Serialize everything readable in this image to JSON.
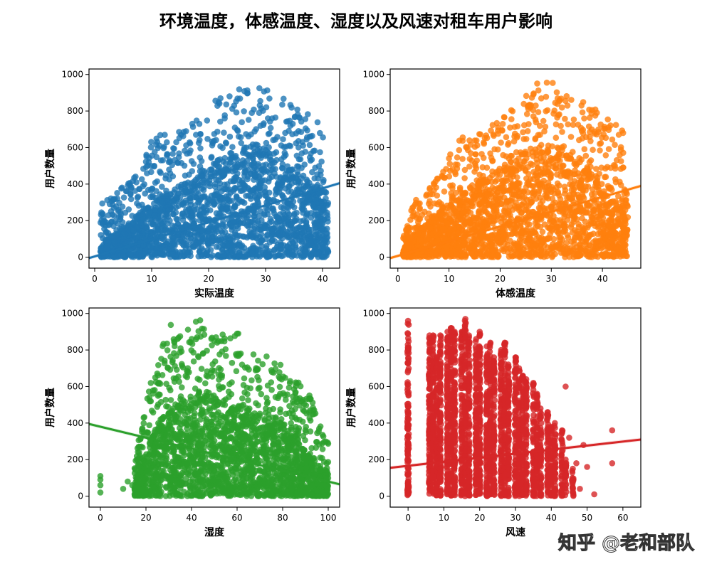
{
  "figure": {
    "title": "环境温度，体感温度、湿度以及风速对租车用户影响",
    "watermark": "知乎 @老和部队"
  },
  "chart_data": [
    {
      "type": "scatter",
      "xlabel": "实际温度",
      "ylabel": "用户数量",
      "xlim": [
        -1,
        43
      ],
      "ylim": [
        -60,
        1030
      ],
      "xticks": [
        0,
        10,
        20,
        30,
        40
      ],
      "yticks": [
        0,
        200,
        400,
        600,
        800,
        1000
      ],
      "color": "#1f77b4",
      "regression": {
        "x": [
          -1,
          43
        ],
        "y": [
          -5,
          405
        ]
      },
      "envelope": {
        "x": [
          1,
          4,
          6,
          8,
          10,
          12,
          14,
          16,
          18,
          20,
          22,
          24,
          26,
          28,
          30,
          32,
          34,
          36,
          38,
          40,
          41
        ],
        "y_upper": [
          320,
          360,
          430,
          500,
          640,
          680,
          700,
          720,
          760,
          840,
          870,
          900,
          940,
          960,
          920,
          870,
          870,
          800,
          780,
          720,
          300
        ],
        "y_core": [
          80,
          140,
          190,
          240,
          300,
          340,
          380,
          420,
          460,
          500,
          540,
          560,
          600,
          620,
          600,
          560,
          500,
          460,
          420,
          380,
          300
        ]
      }
    },
    {
      "type": "scatter",
      "xlabel": "体感温度",
      "ylabel": "用户数量",
      "xlim": [
        -1.5,
        47.5
      ],
      "ylim": [
        -60,
        1030
      ],
      "xticks": [
        0,
        10,
        20,
        30,
        40
      ],
      "yticks": [
        0,
        200,
        400,
        600,
        800,
        1000
      ],
      "color": "#ff7f0e",
      "regression": {
        "x": [
          -1.5,
          47.5
        ],
        "y": [
          -5,
          390
        ]
      },
      "envelope": {
        "x": [
          1,
          3,
          5,
          8,
          10,
          12,
          14,
          16,
          18,
          20,
          22,
          24,
          26,
          28,
          30,
          32,
          34,
          36,
          38,
          40,
          42,
          44,
          45
        ],
        "y_upper": [
          100,
          300,
          360,
          460,
          560,
          640,
          700,
          700,
          720,
          760,
          800,
          860,
          940,
          960,
          980,
          900,
          880,
          860,
          820,
          800,
          740,
          700,
          320
        ],
        "y_core": [
          40,
          120,
          180,
          250,
          300,
          340,
          380,
          420,
          460,
          500,
          540,
          560,
          600,
          620,
          620,
          600,
          560,
          500,
          460,
          420,
          380,
          320,
          280
        ]
      }
    },
    {
      "type": "scatter",
      "xlabel": "湿度",
      "ylabel": "用户数量",
      "xlim": [
        -5,
        105
      ],
      "ylim": [
        -60,
        1030
      ],
      "xticks": [
        0,
        20,
        40,
        60,
        80,
        100
      ],
      "yticks": [
        0,
        200,
        400,
        600,
        800,
        1000
      ],
      "color": "#2ca02c",
      "regression": {
        "x": [
          -5,
          105
        ],
        "y": [
          395,
          65
        ]
      },
      "envelope": {
        "x": [
          15,
          18,
          22,
          26,
          30,
          35,
          40,
          45,
          50,
          55,
          60,
          65,
          70,
          75,
          80,
          85,
          88,
          90,
          93,
          96,
          100
        ],
        "y_upper": [
          180,
          400,
          620,
          760,
          960,
          880,
          940,
          980,
          880,
          900,
          900,
          820,
          800,
          740,
          720,
          640,
          620,
          600,
          520,
          400,
          300
        ],
        "y_core": [
          60,
          180,
          300,
          420,
          480,
          520,
          560,
          580,
          560,
          520,
          500,
          480,
          450,
          420,
          380,
          340,
          300,
          260,
          200,
          160,
          120
        ]
      },
      "sparse_points": [
        [
          0,
          20
        ],
        [
          0,
          60
        ],
        [
          0,
          90
        ],
        [
          0,
          110
        ],
        [
          10,
          40
        ],
        [
          12,
          80
        ],
        [
          14,
          60
        ],
        [
          16,
          200
        ],
        [
          17,
          240
        ]
      ]
    },
    {
      "type": "scatter",
      "xlabel": "风速",
      "ylabel": "用户数量",
      "xlim": [
        -5,
        65
      ],
      "ylim": [
        -60,
        1030
      ],
      "xticks": [
        0,
        10,
        20,
        30,
        40,
        50,
        60
      ],
      "yticks": [
        0,
        200,
        400,
        600,
        800,
        1000
      ],
      "color": "#d62728",
      "regression": {
        "x": [
          -5,
          65
        ],
        "y": [
          155,
          310
        ]
      },
      "strips": {
        "x": [
          0,
          6,
          7,
          8,
          9,
          11,
          12,
          13,
          15,
          16,
          17,
          19,
          20,
          22,
          23,
          24,
          26,
          27,
          28,
          30,
          31,
          32,
          33,
          35,
          36,
          37,
          39,
          40,
          41,
          43,
          44,
          46
        ],
        "top": [
          960,
          880,
          880,
          760,
          880,
          900,
          920,
          900,
          900,
          970,
          880,
          860,
          900,
          820,
          840,
          760,
          800,
          840,
          720,
          760,
          700,
          660,
          640,
          620,
          560,
          480,
          460,
          380,
          400,
          360,
          200,
          150
        ]
      },
      "sparse_points": [
        [
          44,
          600
        ],
        [
          45,
          320
        ],
        [
          47,
          180
        ],
        [
          48,
          40
        ],
        [
          49,
          280
        ],
        [
          50,
          160
        ],
        [
          52,
          10
        ],
        [
          57,
          360
        ],
        [
          57,
          180
        ],
        [
          42,
          20
        ],
        [
          40,
          100
        ]
      ]
    }
  ]
}
